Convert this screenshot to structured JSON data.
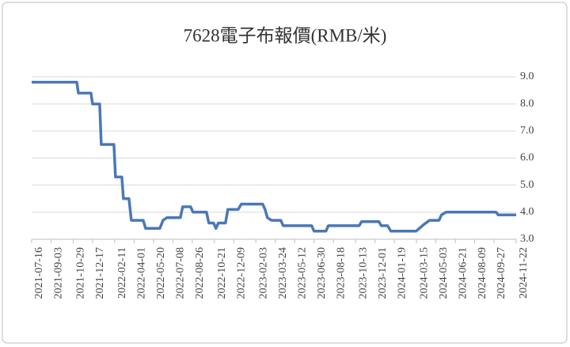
{
  "chart_data": {
    "type": "line",
    "title": "7628電子布報價(RMB/米)",
    "x": [
      "2021-07-16",
      "2021-11-07",
      "2021-11-11",
      "2021-12-13",
      "2021-12-17",
      "2022-01-04",
      "2022-01-08",
      "2022-02-09",
      "2022-02-13",
      "2022-03-01",
      "2022-03-05",
      "2022-03-19",
      "2022-03-25",
      "2022-04-24",
      "2022-04-30",
      "2022-06-05",
      "2022-06-13",
      "2022-06-23",
      "2022-07-27",
      "2022-08-02",
      "2022-08-22",
      "2022-08-28",
      "2022-10-01",
      "2022-10-07",
      "2022-10-19",
      "2022-10-25",
      "2022-10-31",
      "2022-11-18",
      "2022-11-24",
      "2022-12-20",
      "2022-12-28",
      "2023-02-20",
      "2023-02-26",
      "2023-03-04",
      "2023-03-14",
      "2023-04-07",
      "2023-04-13",
      "2023-06-24",
      "2023-06-30",
      "2023-07-30",
      "2023-08-05",
      "2023-10-22",
      "2023-10-28",
      "2023-12-11",
      "2023-12-17",
      "2024-01-02",
      "2024-01-10",
      "2024-03-14",
      "2024-03-22",
      "2024-04-03",
      "2024-04-17",
      "2024-05-11",
      "2024-05-17",
      "2024-05-29",
      "2024-10-02",
      "2024-10-08",
      "2024-11-22"
    ],
    "values": [
      8.8,
      8.8,
      8.4,
      8.4,
      8.0,
      8.0,
      6.5,
      6.5,
      5.3,
      5.3,
      4.5,
      4.5,
      3.7,
      3.7,
      3.4,
      3.4,
      3.7,
      3.8,
      3.8,
      4.2,
      4.2,
      4.0,
      4.0,
      3.6,
      3.6,
      3.4,
      3.6,
      3.6,
      4.1,
      4.1,
      4.3,
      4.3,
      4.1,
      3.8,
      3.7,
      3.7,
      3.5,
      3.5,
      3.3,
      3.3,
      3.5,
      3.5,
      3.65,
      3.65,
      3.5,
      3.5,
      3.3,
      3.3,
      3.4,
      3.55,
      3.7,
      3.7,
      3.9,
      4.0,
      4.0,
      3.9,
      3.9
    ],
    "color": "#4a78b8",
    "xlim": [
      "2021-07-16",
      "2024-11-22"
    ],
    "xticks": [
      "2021-07-16",
      "2021-09-03",
      "2021-10-29",
      "2021-12-17",
      "2022-02-11",
      "2022-04-01",
      "2022-05-20",
      "2022-07-08",
      "2022-08-26",
      "2022-10-21",
      "2022-12-09",
      "2023-02-03",
      "2023-03-24",
      "2023-05-12",
      "2023-06-30",
      "2023-08-18",
      "2023-10-13",
      "2023-12-01",
      "2024-01-19",
      "2024-03-15",
      "2024-05-03",
      "2024-06-21",
      "2024-08-09",
      "2024-09-27",
      "2024-11-22"
    ],
    "ylim": [
      3,
      9
    ],
    "yticks": [
      {
        "value": 3,
        "label": "3.0"
      },
      {
        "value": 4,
        "label": "4.0"
      },
      {
        "value": 5,
        "label": "5.0"
      },
      {
        "value": 6,
        "label": "6.0"
      },
      {
        "value": 7,
        "label": "7.0"
      },
      {
        "value": 8,
        "label": "8.0"
      },
      {
        "value": 9,
        "label": "9.0"
      }
    ],
    "grid": true
  }
}
